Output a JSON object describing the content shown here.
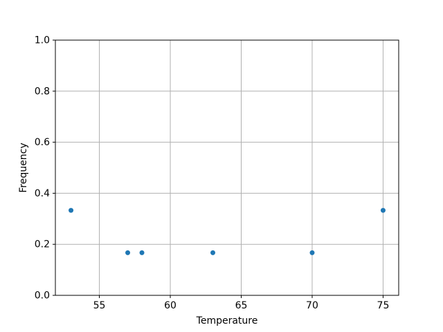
{
  "chart_data": {
    "type": "scatter",
    "title": "",
    "xlabel": "Temperature",
    "ylabel": "Frequency",
    "points": {
      "x": [
        53,
        57,
        58,
        63,
        70,
        75
      ],
      "y": [
        0.333,
        0.167,
        0.167,
        0.167,
        0.167,
        0.333
      ]
    },
    "xlim": [
      51.9,
      76.1
    ],
    "ylim": [
      0.0,
      1.0
    ],
    "xticks": [
      "55",
      "60",
      "65",
      "70",
      "75"
    ],
    "yticks": [
      "0.0",
      "0.2",
      "0.4",
      "0.6",
      "0.8",
      "1.0"
    ],
    "grid": true,
    "legend": null,
    "colors": {
      "marker": "#1f77b4",
      "grid": "#b0b0b0",
      "spine": "#000000",
      "background": "#ffffff"
    },
    "marker_radius": 3.5
  }
}
